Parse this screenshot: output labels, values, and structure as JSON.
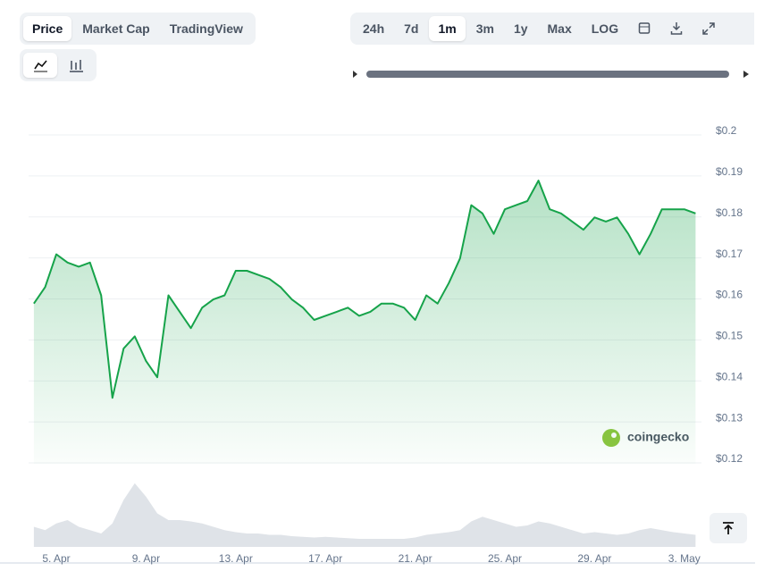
{
  "tabs": [
    "Price",
    "Market Cap",
    "TradingView"
  ],
  "ranges": [
    "24h",
    "7d",
    "1m",
    "3m",
    "1y",
    "Max",
    "LOG"
  ],
  "watermark": "coingecko",
  "chart_data": {
    "type": "line",
    "categories": [
      null,
      null,
      "5. Apr",
      null,
      null,
      null,
      null,
      null,
      null,
      null,
      "9. Apr",
      null,
      null,
      null,
      null,
      null,
      null,
      null,
      "13. Apr",
      null,
      null,
      null,
      null,
      null,
      null,
      null,
      "17. Apr",
      null,
      null,
      null,
      null,
      null,
      null,
      null,
      "21. Apr",
      null,
      null,
      null,
      null,
      null,
      null,
      null,
      "25. Apr",
      null,
      null,
      null,
      null,
      null,
      null,
      null,
      "29. Apr",
      null,
      null,
      null,
      null,
      null,
      null,
      null,
      "3. May",
      null
    ],
    "series": [
      {
        "color": "#16a34a",
        "values": [
          0.158,
          0.162,
          0.17,
          0.168,
          0.167,
          0.168,
          0.16,
          0.135,
          0.147,
          0.15,
          0.144,
          0.14,
          0.16,
          0.156,
          0.152,
          0.157,
          0.159,
          0.16,
          0.166,
          0.166,
          0.165,
          0.164,
          0.162,
          0.159,
          0.157,
          0.154,
          0.155,
          0.156,
          0.157,
          0.155,
          0.156,
          0.158,
          0.158,
          0.157,
          0.154,
          0.16,
          0.158,
          0.163,
          0.169,
          0.182,
          0.18,
          0.175,
          0.181,
          0.182,
          0.183,
          0.188,
          0.181,
          0.18,
          0.178,
          0.176,
          0.179,
          0.178,
          0.179,
          0.175,
          0.17,
          0.175,
          0.181,
          0.181,
          0.181,
          0.18
        ]
      }
    ],
    "volume": {
      "color": "#dfe3e8",
      "ylim": [
        0,
        100
      ],
      "values": [
        30,
        25,
        35,
        40,
        30,
        25,
        20,
        35,
        70,
        95,
        75,
        50,
        40,
        40,
        38,
        35,
        30,
        25,
        22,
        20,
        20,
        18,
        18,
        16,
        15,
        14,
        15,
        14,
        13,
        12,
        12,
        12,
        12,
        12,
        14,
        18,
        20,
        22,
        25,
        38,
        45,
        40,
        35,
        30,
        32,
        38,
        35,
        30,
        25,
        20,
        22,
        20,
        18,
        20,
        25,
        28,
        25,
        22,
        20,
        18
      ]
    },
    "ylim": [
      0.12,
      0.2
    ],
    "yticks": [
      {
        "value": 0.12,
        "label": "$0.12"
      },
      {
        "value": 0.13,
        "label": "$0.13"
      },
      {
        "value": 0.14,
        "label": "$0.14"
      },
      {
        "value": 0.15,
        "label": "$0.15"
      },
      {
        "value": 0.16,
        "label": "$0.16"
      },
      {
        "value": 0.17,
        "label": "$0.17"
      },
      {
        "value": 0.18,
        "label": "$0.18"
      },
      {
        "value": 0.19,
        "label": "$0.19"
      },
      {
        "value": 0.2,
        "label": "$0.2"
      }
    ],
    "grid": true
  }
}
